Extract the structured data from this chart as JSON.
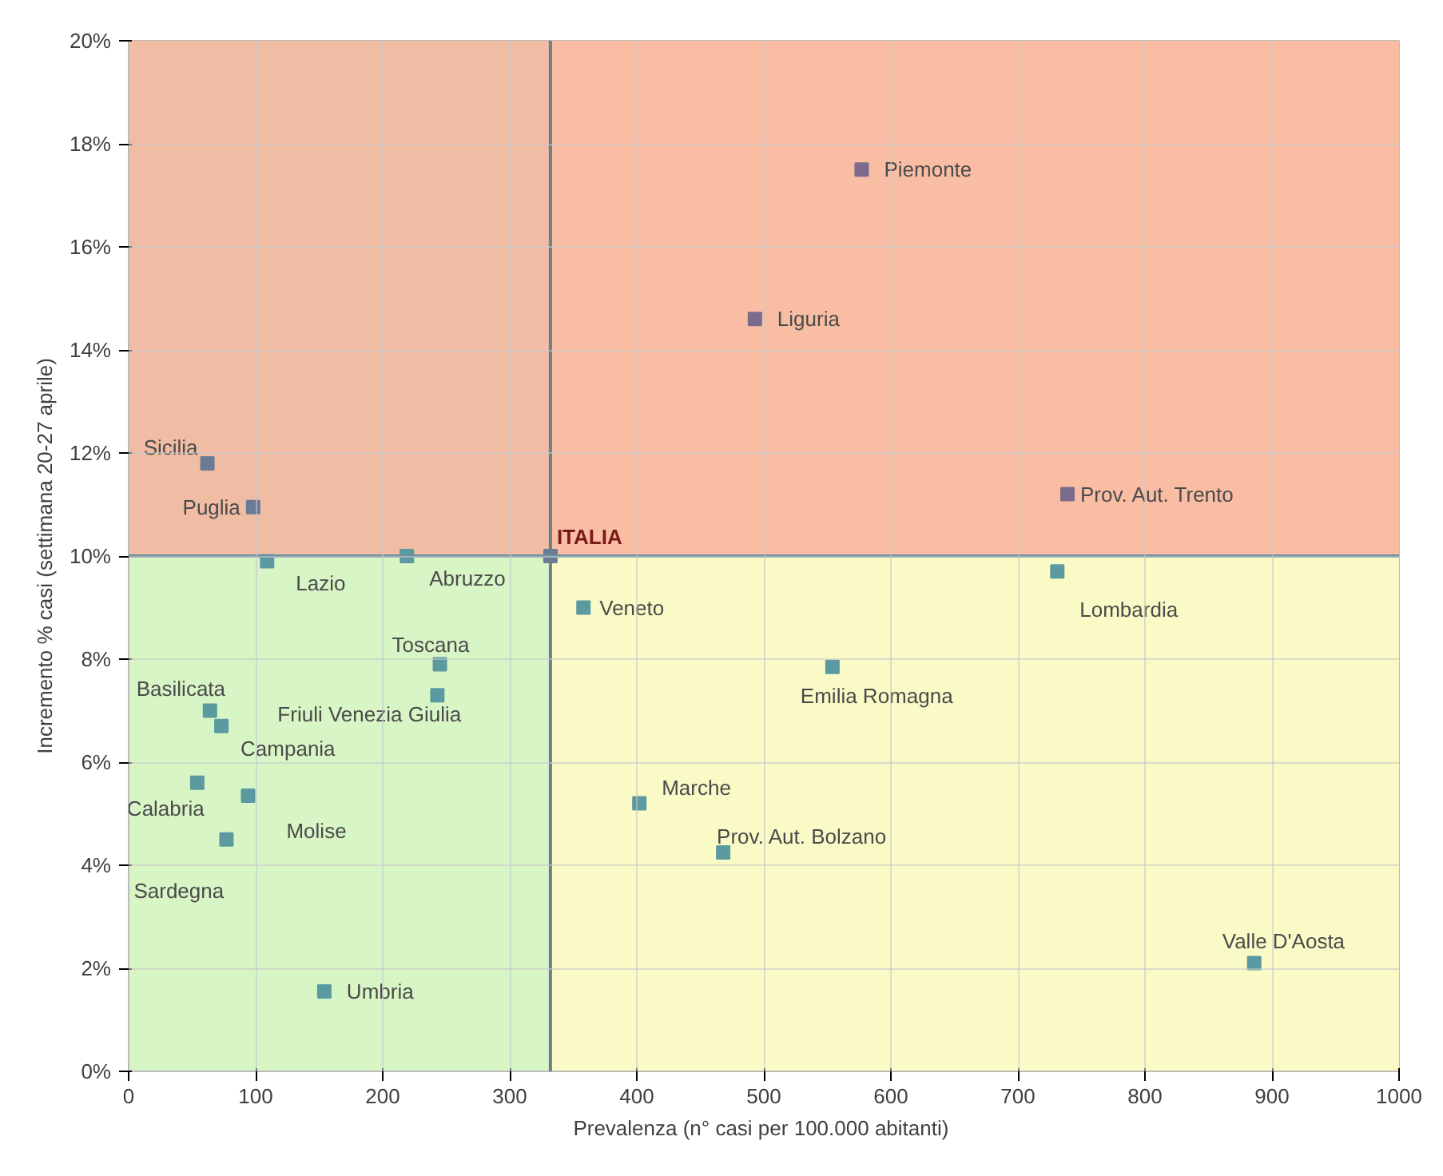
{
  "chart_data": {
    "type": "scatter",
    "xlabel": "Prevalenza  (n° casi per 100.000 abitanti)",
    "ylabel": "Incremento % casi (settimana 20-27 aprile)",
    "x": [
      577,
      493,
      739,
      62,
      98,
      109,
      219,
      332,
      358,
      731,
      245,
      243,
      554,
      64,
      73,
      54,
      94,
      77,
      402,
      468,
      886,
      154
    ],
    "series": [
      {
        "values": [
          17.5,
          14.6,
          11.2,
          11.8,
          10.95,
          9.9,
          10.0,
          10.0,
          9.0,
          9.7,
          7.9,
          7.3,
          7.85,
          7.0,
          6.7,
          5.6,
          5.35,
          4.5,
          5.2,
          4.25,
          2.1,
          1.55
        ],
        "colors": [
          "#7b6b8c",
          "#7b6b8c",
          "#7b6b8c",
          "#6a7b98",
          "#6a7b98",
          "#5a9aa0",
          "#5a9aa0",
          "#6a7b98",
          "#5a9aa0",
          "#5a9aa0",
          "#5a9aa0",
          "#5a9aa0",
          "#5a9aa0",
          "#5a9aa0",
          "#5a9aa0",
          "#5a9aa0",
          "#5a9aa0",
          "#5a9aa0",
          "#5a9aa0",
          "#5a9aa0",
          "#5a9aa0",
          "#5a9aa0"
        ]
      }
    ],
    "annotations": [
      {
        "text": "Piemonte",
        "x": 577,
        "y": 17.5
      },
      {
        "text": "Liguria",
        "x": 493,
        "y": 14.6
      },
      {
        "text": "Prov. Aut. Trento",
        "x": 739,
        "y": 11.2
      },
      {
        "text": "Sicilia",
        "x": 62,
        "y": 11.8
      },
      {
        "text": "Puglia",
        "x": 98,
        "y": 10.95
      },
      {
        "text": "Lazio",
        "x": 109,
        "y": 9.9
      },
      {
        "text": "Abruzzo",
        "x": 219,
        "y": 10.0
      },
      {
        "text": "ITALIA",
        "x": 332,
        "y": 10.0
      },
      {
        "text": "Veneto",
        "x": 358,
        "y": 9.0
      },
      {
        "text": "Lombardia",
        "x": 731,
        "y": 9.7
      },
      {
        "text": "Toscana",
        "x": 245,
        "y": 7.9
      },
      {
        "text": "Friuli Venezia Giulia",
        "x": 243,
        "y": 7.3
      },
      {
        "text": "Emilia Romagna",
        "x": 554,
        "y": 7.85
      },
      {
        "text": "Basilicata",
        "x": 64,
        "y": 7.0
      },
      {
        "text": "Campania",
        "x": 73,
        "y": 6.7
      },
      {
        "text": "Calabria",
        "x": 54,
        "y": 5.6
      },
      {
        "text": "Molise",
        "x": 94,
        "y": 5.35
      },
      {
        "text": "Sardegna",
        "x": 77,
        "y": 4.5
      },
      {
        "text": "Marche",
        "x": 402,
        "y": 5.2
      },
      {
        "text": "Prov. Aut. Bolzano",
        "x": 468,
        "y": 4.25
      },
      {
        "text": "Valle D'Aosta",
        "x": 886,
        "y": 2.1
      },
      {
        "text": "Umbria",
        "x": 154,
        "y": 1.55
      }
    ],
    "xlim": [
      0,
      1000
    ],
    "xticks": [
      0,
      100,
      200,
      300,
      400,
      500,
      600,
      700,
      800,
      900,
      1000
    ],
    "ylim": [
      0,
      20
    ],
    "yticks": [
      {
        "value": 0,
        "label": "0%"
      },
      {
        "value": 2,
        "label": "2%"
      },
      {
        "value": 4,
        "label": "4%"
      },
      {
        "value": 6,
        "label": "6%"
      },
      {
        "value": 8,
        "label": "8%"
      },
      {
        "value": 10,
        "label": "10%"
      },
      {
        "value": 12,
        "label": "12%"
      },
      {
        "value": 14,
        "label": "14%"
      },
      {
        "value": 16,
        "label": "16%"
      },
      {
        "value": 18,
        "label": "18%"
      },
      {
        "value": 20,
        "label": "20%"
      }
    ],
    "ref_lines": [
      {
        "axis": "x",
        "value": 332,
        "color": "#6a8088"
      },
      {
        "axis": "y",
        "value": 10,
        "color": "#6a90a4"
      }
    ],
    "bands": [
      {
        "axis": "x",
        "from": 0,
        "to": 332,
        "color": "#d8f5c6"
      },
      {
        "axis": "x",
        "from": 332,
        "to": 1000,
        "color": "#fafac6"
      },
      {
        "axis": "y",
        "from": 10,
        "to": 20,
        "color": "#f8a898"
      }
    ],
    "grid": true,
    "marker": "square"
  }
}
